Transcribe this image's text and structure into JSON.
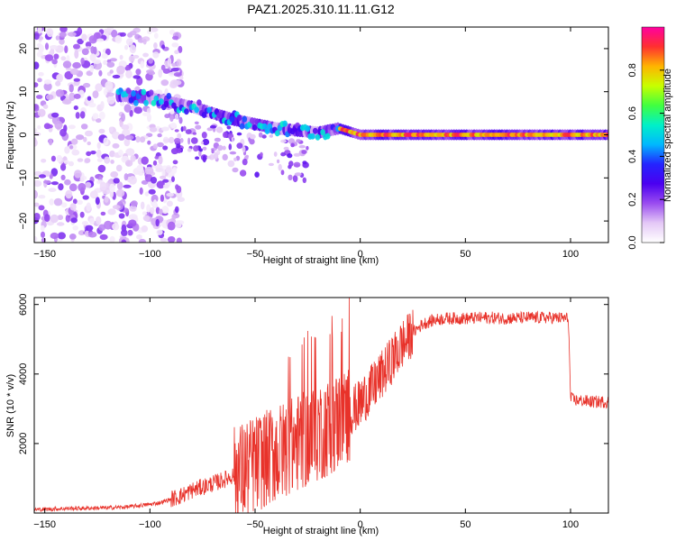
{
  "chart_data": [
    {
      "type": "heatmap",
      "title": "PAZ1.2025.310.11.11.G12",
      "xlabel": "Height of straight line (km)",
      "ylabel": "Frequency (Hz)",
      "xlim": [
        -155,
        118
      ],
      "ylim": [
        -25,
        25
      ],
      "xticks": [
        -150,
        -100,
        -50,
        0,
        50,
        100
      ],
      "yticks": [
        -20,
        -10,
        0,
        10,
        20
      ],
      "colorbar": {
        "label": "Normalized spectral amplitude",
        "range": [
          0,
          1
        ],
        "ticks": [
          0.0,
          0.2,
          0.4,
          0.6,
          0.8
        ],
        "colors": [
          "#ffffff",
          "#e4c8f6",
          "#9a4cf0",
          "#4a00f0",
          "#2424ff",
          "#00b8ff",
          "#00f0c8",
          "#40ff40",
          "#c8ff00",
          "#ffb400",
          "#ff3030",
          "#ff00a0"
        ]
      },
      "ridge": [
        {
          "x": -110,
          "f": 9
        },
        {
          "x": -100,
          "f": 8.5
        },
        {
          "x": -90,
          "f": 7.5
        },
        {
          "x": -80,
          "f": 6.5
        },
        {
          "x": -70,
          "f": 5
        },
        {
          "x": -60,
          "f": 3.5
        },
        {
          "x": -50,
          "f": 2.5
        },
        {
          "x": -40,
          "f": 1.5
        },
        {
          "x": -30,
          "f": 1
        },
        {
          "x": -20,
          "f": 0.5
        },
        {
          "x": -10,
          "f": 1.5
        },
        {
          "x": 0,
          "f": 0
        },
        {
          "x": 50,
          "f": 0
        },
        {
          "x": 100,
          "f": 0
        },
        {
          "x": 118,
          "f": 0
        }
      ]
    },
    {
      "type": "line",
      "xlabel": "Height of straight line (km)",
      "ylabel": "SNR (10 * v/v)",
      "xlim": [
        -155,
        118
      ],
      "ylim": [
        0,
        6200
      ],
      "xticks": [
        -150,
        -100,
        -50,
        0,
        50,
        100
      ],
      "yticks": [
        2000,
        4000,
        6000
      ],
      "color": "#e8322a",
      "series": [
        {
          "name": "SNR",
          "x": [
            -155,
            -140,
            -120,
            -110,
            -100,
            -95,
            -90,
            -85,
            -80,
            -75,
            -70,
            -65,
            -60,
            -55,
            -50,
            -45,
            -40,
            -35,
            -30,
            -25,
            -20,
            -15,
            -10,
            -5,
            0,
            5,
            10,
            15,
            20,
            25,
            30,
            35,
            40,
            50,
            60,
            70,
            80,
            90,
            99,
            100,
            102,
            110,
            118
          ],
          "values": [
            100,
            130,
            150,
            180,
            250,
            300,
            400,
            500,
            650,
            750,
            850,
            950,
            1100,
            1250,
            1400,
            1550,
            1700,
            1850,
            2000,
            2150,
            2300,
            2450,
            2650,
            2900,
            3150,
            3550,
            3950,
            4400,
            4850,
            5200,
            5450,
            5550,
            5600,
            5600,
            5620,
            5600,
            5620,
            5620,
            5600,
            3300,
            3250,
            3200,
            3200
          ]
        }
      ]
    }
  ]
}
